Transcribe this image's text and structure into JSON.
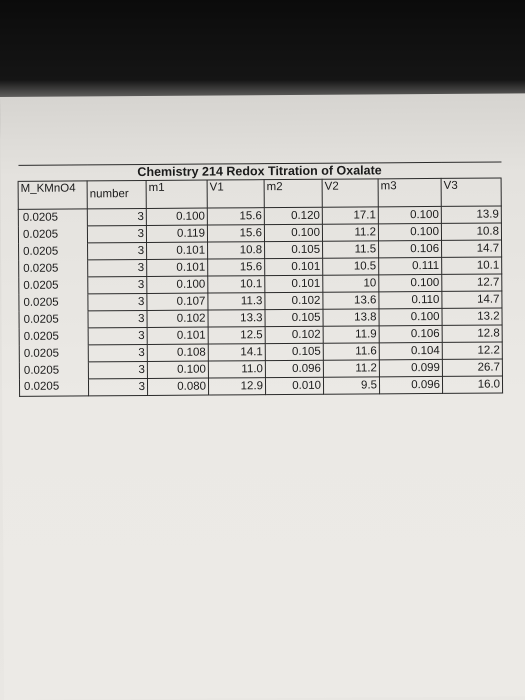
{
  "table": {
    "title": "Chemistry 214 Redox Titration of Oxalate",
    "header": [
      "M_KMnO4",
      "number",
      "m1",
      "V1",
      "m2",
      "V2",
      "m3",
      "V3"
    ],
    "rows": [
      [
        "0.0205",
        "3",
        "0.100",
        "15.6",
        "0.120",
        "17.1",
        "0.100",
        "13.9"
      ],
      [
        "0.0205",
        "3",
        "0.119",
        "15.6",
        "0.100",
        "11.2",
        "0.100",
        "10.8"
      ],
      [
        "0.0205",
        "3",
        "0.101",
        "10.8",
        "0.105",
        "11.5",
        "0.106",
        "14.7"
      ],
      [
        "0.0205",
        "3",
        "0.101",
        "15.6",
        "0.101",
        "10.5",
        "0.111",
        "10.1"
      ],
      [
        "0.0205",
        "3",
        "0.100",
        "10.1",
        "0.101",
        "10",
        "0.100",
        "12.7"
      ],
      [
        "0.0205",
        "3",
        "0.107",
        "11.3",
        "0.102",
        "13.6",
        "0.110",
        "14.7"
      ],
      [
        "0.0205",
        "3",
        "0.102",
        "13.3",
        "0.105",
        "13.8",
        "0.100",
        "13.2"
      ],
      [
        "0.0205",
        "3",
        "0.101",
        "12.5",
        "0.102",
        "11.9",
        "0.106",
        "12.8"
      ],
      [
        "0.0205",
        "3",
        "0.108",
        "14.1",
        "0.105",
        "11.6",
        "0.104",
        "12.2"
      ],
      [
        "0.0205",
        "3",
        "0.100",
        "11.0",
        "0.096",
        "11.2",
        "0.099",
        "26.7"
      ],
      [
        "0.0205",
        "3",
        "0.080",
        "12.9",
        "0.010",
        "9.5",
        "0.096",
        "16.0"
      ]
    ]
  }
}
